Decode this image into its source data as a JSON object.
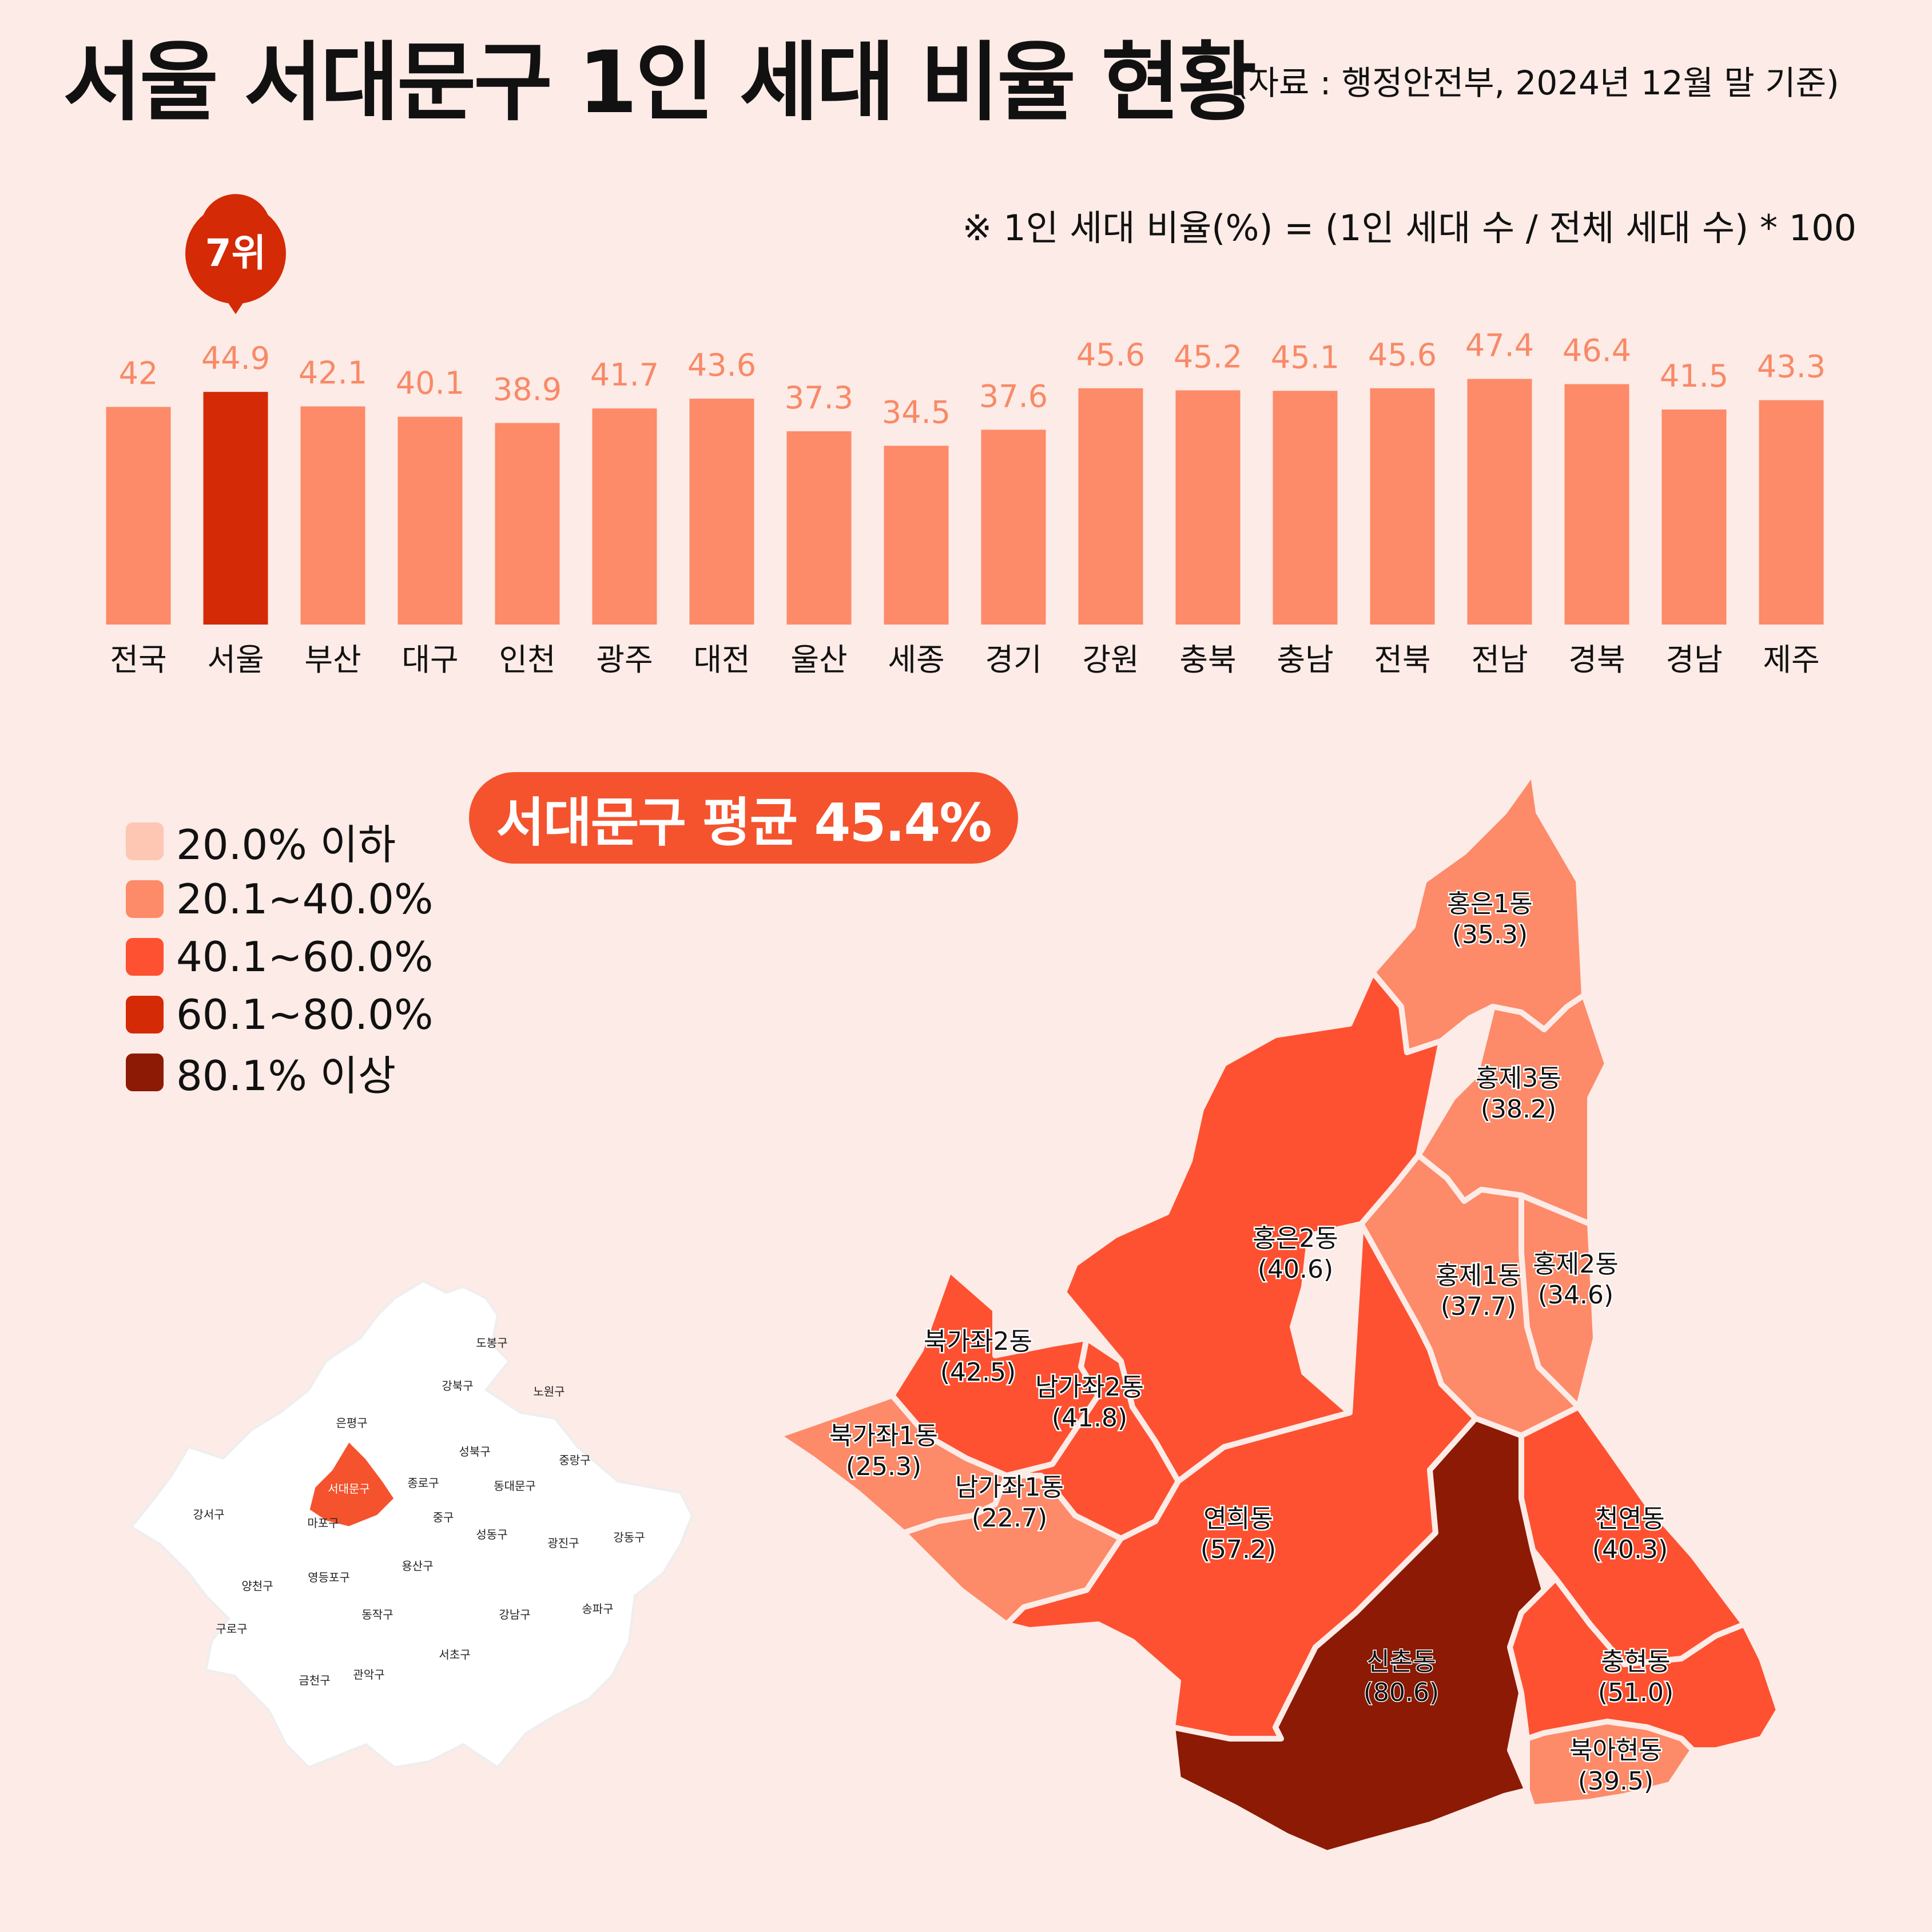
{
  "title": "서울 서대문구 1인 세대 비율 현황",
  "source": "(자료 : 행정안전부, 2024년 12월 말 기준)",
  "formula": "※ 1인 세대 비율(%) = (1인 세대 수 / 전체 세대 수) * 100",
  "chart_data": [
    {
      "type": "bar",
      "categories": [
        "전국",
        "서울",
        "부산",
        "대구",
        "인천",
        "광주",
        "대전",
        "울산",
        "세종",
        "경기",
        "강원",
        "충북",
        "충남",
        "전북",
        "전남",
        "경북",
        "경남",
        "제주"
      ],
      "values": [
        42,
        44.9,
        42.1,
        40.1,
        38.9,
        41.7,
        43.6,
        37.3,
        34.5,
        37.6,
        45.6,
        45.2,
        45.1,
        45.6,
        47.4,
        46.4,
        41.5,
        43.3
      ],
      "value_labels": [
        "42",
        "44.9",
        "42.1",
        "40.1",
        "38.9",
        "41.7",
        "43.6",
        "37.3",
        "34.5",
        "37.6",
        "45.6",
        "45.2",
        "45.1",
        "45.6",
        "47.4",
        "46.4",
        "41.5",
        "43.3"
      ],
      "highlight": {
        "category": "서울",
        "badge": "7위",
        "color": "#d42a05"
      },
      "bar_color": "#fd8a69",
      "value_label_color": "#f98967",
      "grid": false
    },
    {
      "type": "map",
      "average_badge": "서대문구 평균 45.4%",
      "legend": [
        {
          "label": "20.0% 이하",
          "color": "#fdc7b4"
        },
        {
          "label": "20.1~40.0%",
          "color": "#fd8a69"
        },
        {
          "label": "40.1~60.0%",
          "color": "#fe5131"
        },
        {
          "label": "60.1~80.0%",
          "color": "#d42a05"
        },
        {
          "label": "80.1% 이상",
          "color": "#8c1a04"
        }
      ],
      "regions": [
        {
          "name": "홍은1동",
          "value": "(35.3)",
          "color": "#fd8a69"
        },
        {
          "name": "홍제3동",
          "value": "(38.2)",
          "color": "#fd8a69"
        },
        {
          "name": "홍은2동",
          "value": "(40.6)",
          "color": "#fe5131"
        },
        {
          "name": "홍제1동",
          "value": "(37.7)",
          "color": "#fd8a69"
        },
        {
          "name": "홍제2동",
          "value": "(34.6)",
          "color": "#fd8a69"
        },
        {
          "name": "북가좌2동",
          "value": "(42.5)",
          "color": "#fe5131"
        },
        {
          "name": "남가좌2동",
          "value": "(41.8)",
          "color": "#fe5131"
        },
        {
          "name": "북가좌1동",
          "value": "(25.3)",
          "color": "#fd8a69"
        },
        {
          "name": "남가좌1동",
          "value": "(22.7)",
          "color": "#fd8a69"
        },
        {
          "name": "연희동",
          "value": "(57.2)",
          "color": "#fe5131"
        },
        {
          "name": "천연동",
          "value": "(40.3)",
          "color": "#fe5131"
        },
        {
          "name": "신촌동",
          "value": "(80.6)",
          "color": "#8c1a04"
        },
        {
          "name": "충현동",
          "value": "(51.0)",
          "color": "#fe5131"
        },
        {
          "name": "북아현동",
          "value": "(39.5)",
          "color": "#fd8a69"
        }
      ]
    },
    {
      "type": "map",
      "highlight": {
        "name": "서대문구",
        "color": "#f4532e"
      },
      "districts": [
        "도봉구",
        "강북구",
        "노원구",
        "은평구",
        "성북구",
        "중랑구",
        "종로구",
        "동대문구",
        "서대문구",
        "강서구",
        "마포구",
        "중구",
        "성동구",
        "광진구",
        "강동구",
        "양천구",
        "영등포구",
        "용산구",
        "구로구",
        "동작구",
        "강남구",
        "송파구",
        "서초구",
        "금천구",
        "관악구"
      ]
    }
  ]
}
